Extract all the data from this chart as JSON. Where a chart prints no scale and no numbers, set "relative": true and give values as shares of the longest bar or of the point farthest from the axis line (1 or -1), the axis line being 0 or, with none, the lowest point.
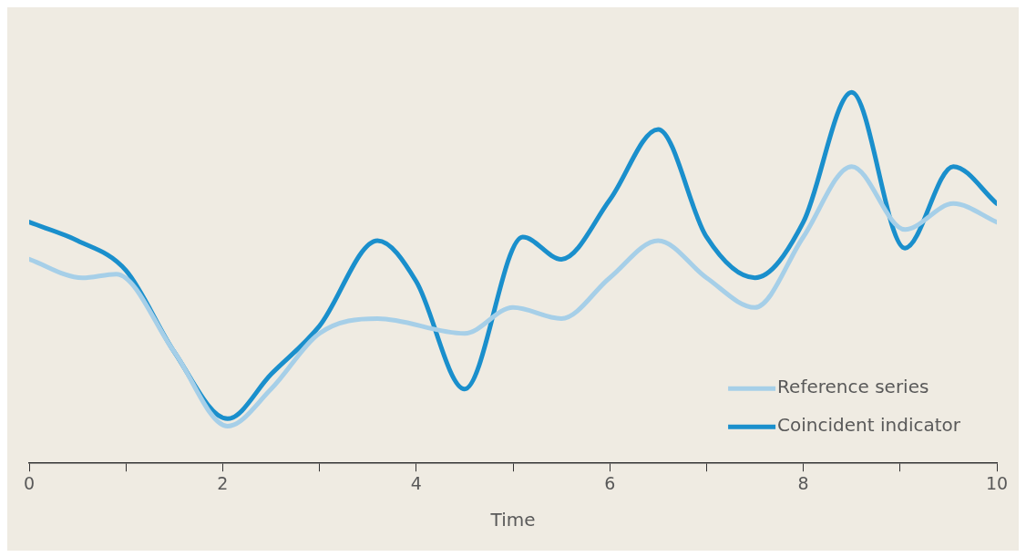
{
  "chart_data": {
    "type": "line",
    "xlabel": "Time",
    "relative": true,
    "grid": false,
    "legend": "bottom right",
    "marker": "none",
    "line_style": "solid",
    "xlim": [
      0,
      10
    ],
    "xticks": [
      0,
      {
        "value": 1,
        "label": null
      },
      2,
      {
        "value": 3,
        "label": null
      },
      4,
      {
        "value": 5,
        "label": null
      },
      6,
      {
        "value": 7,
        "label": null
      },
      8,
      {
        "value": 9,
        "label": null
      },
      10
    ],
    "series": [
      {
        "name": "Reference series",
        "color": "#a6cfe8",
        "x": [
          0,
          0.55,
          0.9,
          1.5,
          2.05,
          2.5,
          3,
          3.6,
          4.5,
          5,
          5.5,
          6,
          6.5,
          7,
          7.5,
          8,
          8.5,
          9.05,
          9.55,
          10
        ],
        "values": [
          0.55,
          0.5,
          0.51,
          0.3,
          0.1,
          0.2,
          0.35,
          0.39,
          0.35,
          0.42,
          0.39,
          0.5,
          0.6,
          0.5,
          0.42,
          0.61,
          0.8,
          0.63,
          0.7,
          0.65
        ]
      },
      {
        "name": "Coincident indicator",
        "color": "#1a8fcc",
        "x": [
          0,
          0.5,
          1,
          1.5,
          2.05,
          2.5,
          3,
          3.6,
          4,
          4.5,
          5.1,
          5.5,
          6,
          6.5,
          7,
          7.5,
          8,
          8.5,
          9.05,
          9.55,
          10
        ],
        "values": [
          0.65,
          0.6,
          0.52,
          0.3,
          0.12,
          0.24,
          0.37,
          0.6,
          0.49,
          0.2,
          0.61,
          0.55,
          0.71,
          0.9,
          0.61,
          0.5,
          0.65,
          1,
          0.58,
          0.8,
          0.7
        ]
      }
    ]
  }
}
